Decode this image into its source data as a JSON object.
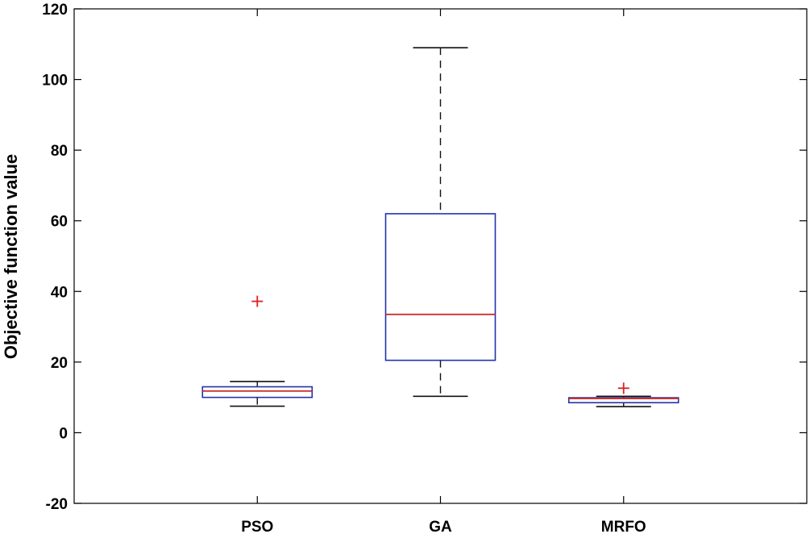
{
  "chart_data": {
    "type": "box",
    "title": "",
    "xlabel": "",
    "ylabel": "Objective function value",
    "ylim": [
      -20,
      120
    ],
    "yticks": [
      -20,
      0,
      20,
      40,
      60,
      80,
      100,
      120
    ],
    "grid": false,
    "categories": [
      "PSO",
      "GA",
      "MRFO"
    ],
    "boxes": [
      {
        "name": "PSO",
        "whisker_low": 7.5,
        "q1": 10.0,
        "median": 11.8,
        "q3": 13.0,
        "whisker_high": 14.5,
        "outliers": [
          37.2
        ]
      },
      {
        "name": "GA",
        "whisker_low": 10.3,
        "q1": 20.5,
        "median": 33.5,
        "q3": 62.0,
        "whisker_high": 109.0,
        "outliers": []
      },
      {
        "name": "MRFO",
        "whisker_low": 7.4,
        "q1": 8.5,
        "median": 9.7,
        "q3": 9.9,
        "whisker_high": 10.3,
        "outliers": [
          12.6
        ]
      }
    ],
    "colors": {
      "box": "#2233aa",
      "median": "#cc2222",
      "whisker": "#111111",
      "outlier": "#dd2222",
      "axis": "#000000"
    }
  }
}
